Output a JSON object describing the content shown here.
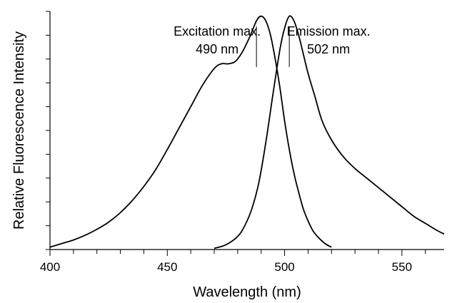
{
  "chart_data": {
    "type": "line",
    "title": "",
    "xlabel": "Wavelength (nm)",
    "ylabel": "Relative Fluorescence Intensity",
    "xlim": [
      400,
      568
    ],
    "ylim": [
      0,
      1
    ],
    "x_ticks": [
      400,
      450,
      500,
      550
    ],
    "x_tick_labels": [
      "400",
      "450",
      "500",
      "550"
    ],
    "y_minor_ticks": 10,
    "y_tick_labels_shown": false,
    "grid": false,
    "legend": "none",
    "line_color": "#000000",
    "series": [
      {
        "x": [
          400,
          405,
          410,
          415,
          420,
          425,
          430,
          435,
          440,
          445,
          450,
          455,
          460,
          465,
          470,
          473,
          476,
          479,
          482,
          485,
          488,
          490,
          492,
          494,
          496,
          498,
          500,
          502,
          504,
          506,
          508,
          510,
          512,
          514,
          516,
          518,
          520
        ],
        "y": [
          0.01,
          0.025,
          0.04,
          0.06,
          0.085,
          0.115,
          0.155,
          0.205,
          0.265,
          0.335,
          0.42,
          0.51,
          0.6,
          0.69,
          0.76,
          0.78,
          0.78,
          0.79,
          0.83,
          0.89,
          0.96,
          0.98,
          0.96,
          0.9,
          0.8,
          0.68,
          0.54,
          0.42,
          0.32,
          0.24,
          0.17,
          0.12,
          0.08,
          0.055,
          0.035,
          0.02,
          0.01
        ]
      },
      {
        "x": [
          470,
          475,
          480,
          483,
          486,
          489,
          492,
          495,
          498,
          500,
          502,
          504,
          506,
          508,
          510,
          513,
          516,
          520,
          525,
          530,
          535,
          540,
          545,
          550,
          555,
          560,
          565,
          568
        ],
        "y": [
          0.005,
          0.02,
          0.055,
          0.1,
          0.17,
          0.28,
          0.45,
          0.65,
          0.84,
          0.93,
          0.98,
          0.96,
          0.9,
          0.82,
          0.74,
          0.64,
          0.54,
          0.46,
          0.39,
          0.34,
          0.3,
          0.26,
          0.22,
          0.18,
          0.14,
          0.11,
          0.08,
          0.065
        ]
      }
    ],
    "annotations": [
      {
        "line1": "Excitation max.",
        "line2": "490 nm",
        "x": 488
      },
      {
        "line1": "Emission max.",
        "line2": "502 nm",
        "x": 502
      }
    ]
  }
}
